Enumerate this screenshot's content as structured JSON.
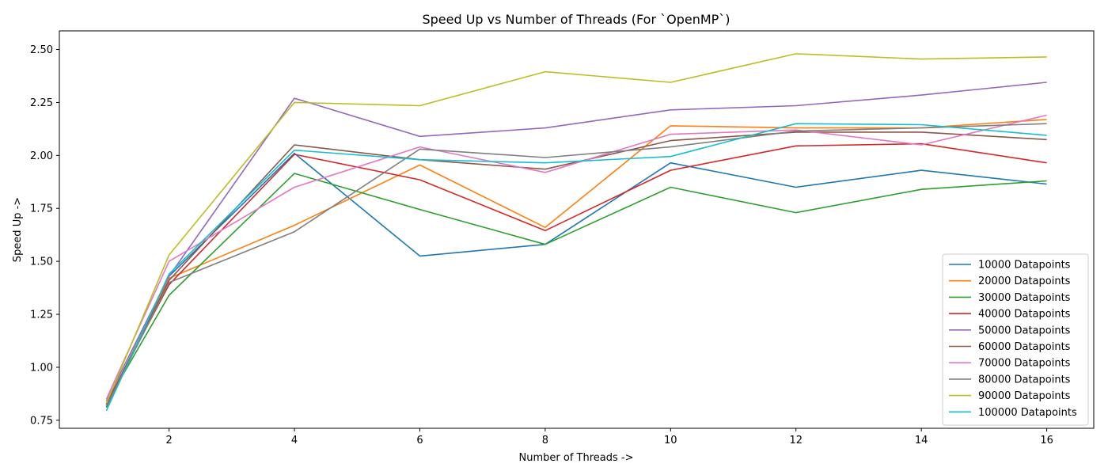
{
  "chart_data": {
    "type": "line",
    "title": "Speed Up vs Number of Threads (For `OpenMP`)",
    "xlabel": "Number of Threads ->",
    "ylabel": "Speed Up ->",
    "x": [
      1,
      2,
      4,
      6,
      8,
      10,
      12,
      14,
      16
    ],
    "xticks": [
      2,
      4,
      6,
      8,
      10,
      12,
      14,
      16
    ],
    "yticks": [
      "0.75",
      "1.00",
      "1.25",
      "1.50",
      "1.75",
      "2.00",
      "2.25",
      "2.50"
    ],
    "xlim": [
      0.25,
      16.75
    ],
    "ylim": [
      0.712,
      2.588
    ],
    "grid": false,
    "legend_position": "lower-right",
    "series": [
      {
        "name": "10000 Datapoints",
        "color": "#1f77b4",
        "values": [
          0.81,
          1.43,
          2.01,
          1.525,
          1.58,
          1.965,
          1.85,
          1.93,
          1.865
        ]
      },
      {
        "name": "20000 Datapoints",
        "color": "#ff7f0e",
        "values": [
          0.82,
          1.42,
          1.67,
          1.955,
          1.66,
          2.14,
          2.13,
          2.13,
          2.17
        ]
      },
      {
        "name": "30000 Datapoints",
        "color": "#2ca02c",
        "values": [
          0.83,
          1.34,
          1.915,
          1.745,
          1.58,
          1.85,
          1.73,
          1.84,
          1.88
        ]
      },
      {
        "name": "40000 Datapoints",
        "color": "#d62728",
        "values": [
          0.83,
          1.39,
          2.005,
          1.885,
          1.645,
          1.93,
          2.045,
          2.055,
          1.965
        ]
      },
      {
        "name": "50000 Datapoints",
        "color": "#9467bd",
        "values": [
          0.84,
          1.43,
          2.27,
          2.09,
          2.13,
          2.215,
          2.235,
          2.285,
          2.345
        ]
      },
      {
        "name": "60000 Datapoints",
        "color": "#8c564b",
        "values": [
          0.825,
          1.41,
          2.05,
          1.98,
          1.935,
          2.07,
          2.11,
          2.11,
          2.075
        ]
      },
      {
        "name": "70000 Datapoints",
        "color": "#e377c2",
        "values": [
          0.85,
          1.5,
          1.85,
          2.04,
          1.92,
          2.1,
          2.12,
          2.05,
          2.19
        ]
      },
      {
        "name": "80000 Datapoints",
        "color": "#7f7f7f",
        "values": [
          0.815,
          1.4,
          1.64,
          2.03,
          1.99,
          2.04,
          2.115,
          2.13,
          2.15
        ]
      },
      {
        "name": "90000 Datapoints",
        "color": "#bcbd22",
        "values": [
          0.83,
          1.53,
          2.25,
          2.235,
          2.395,
          2.345,
          2.48,
          2.455,
          2.465
        ]
      },
      {
        "name": "100000 Datapoints",
        "color": "#17becf",
        "values": [
          0.795,
          1.44,
          2.025,
          1.98,
          1.965,
          1.995,
          2.15,
          2.145,
          2.095
        ]
      }
    ]
  }
}
